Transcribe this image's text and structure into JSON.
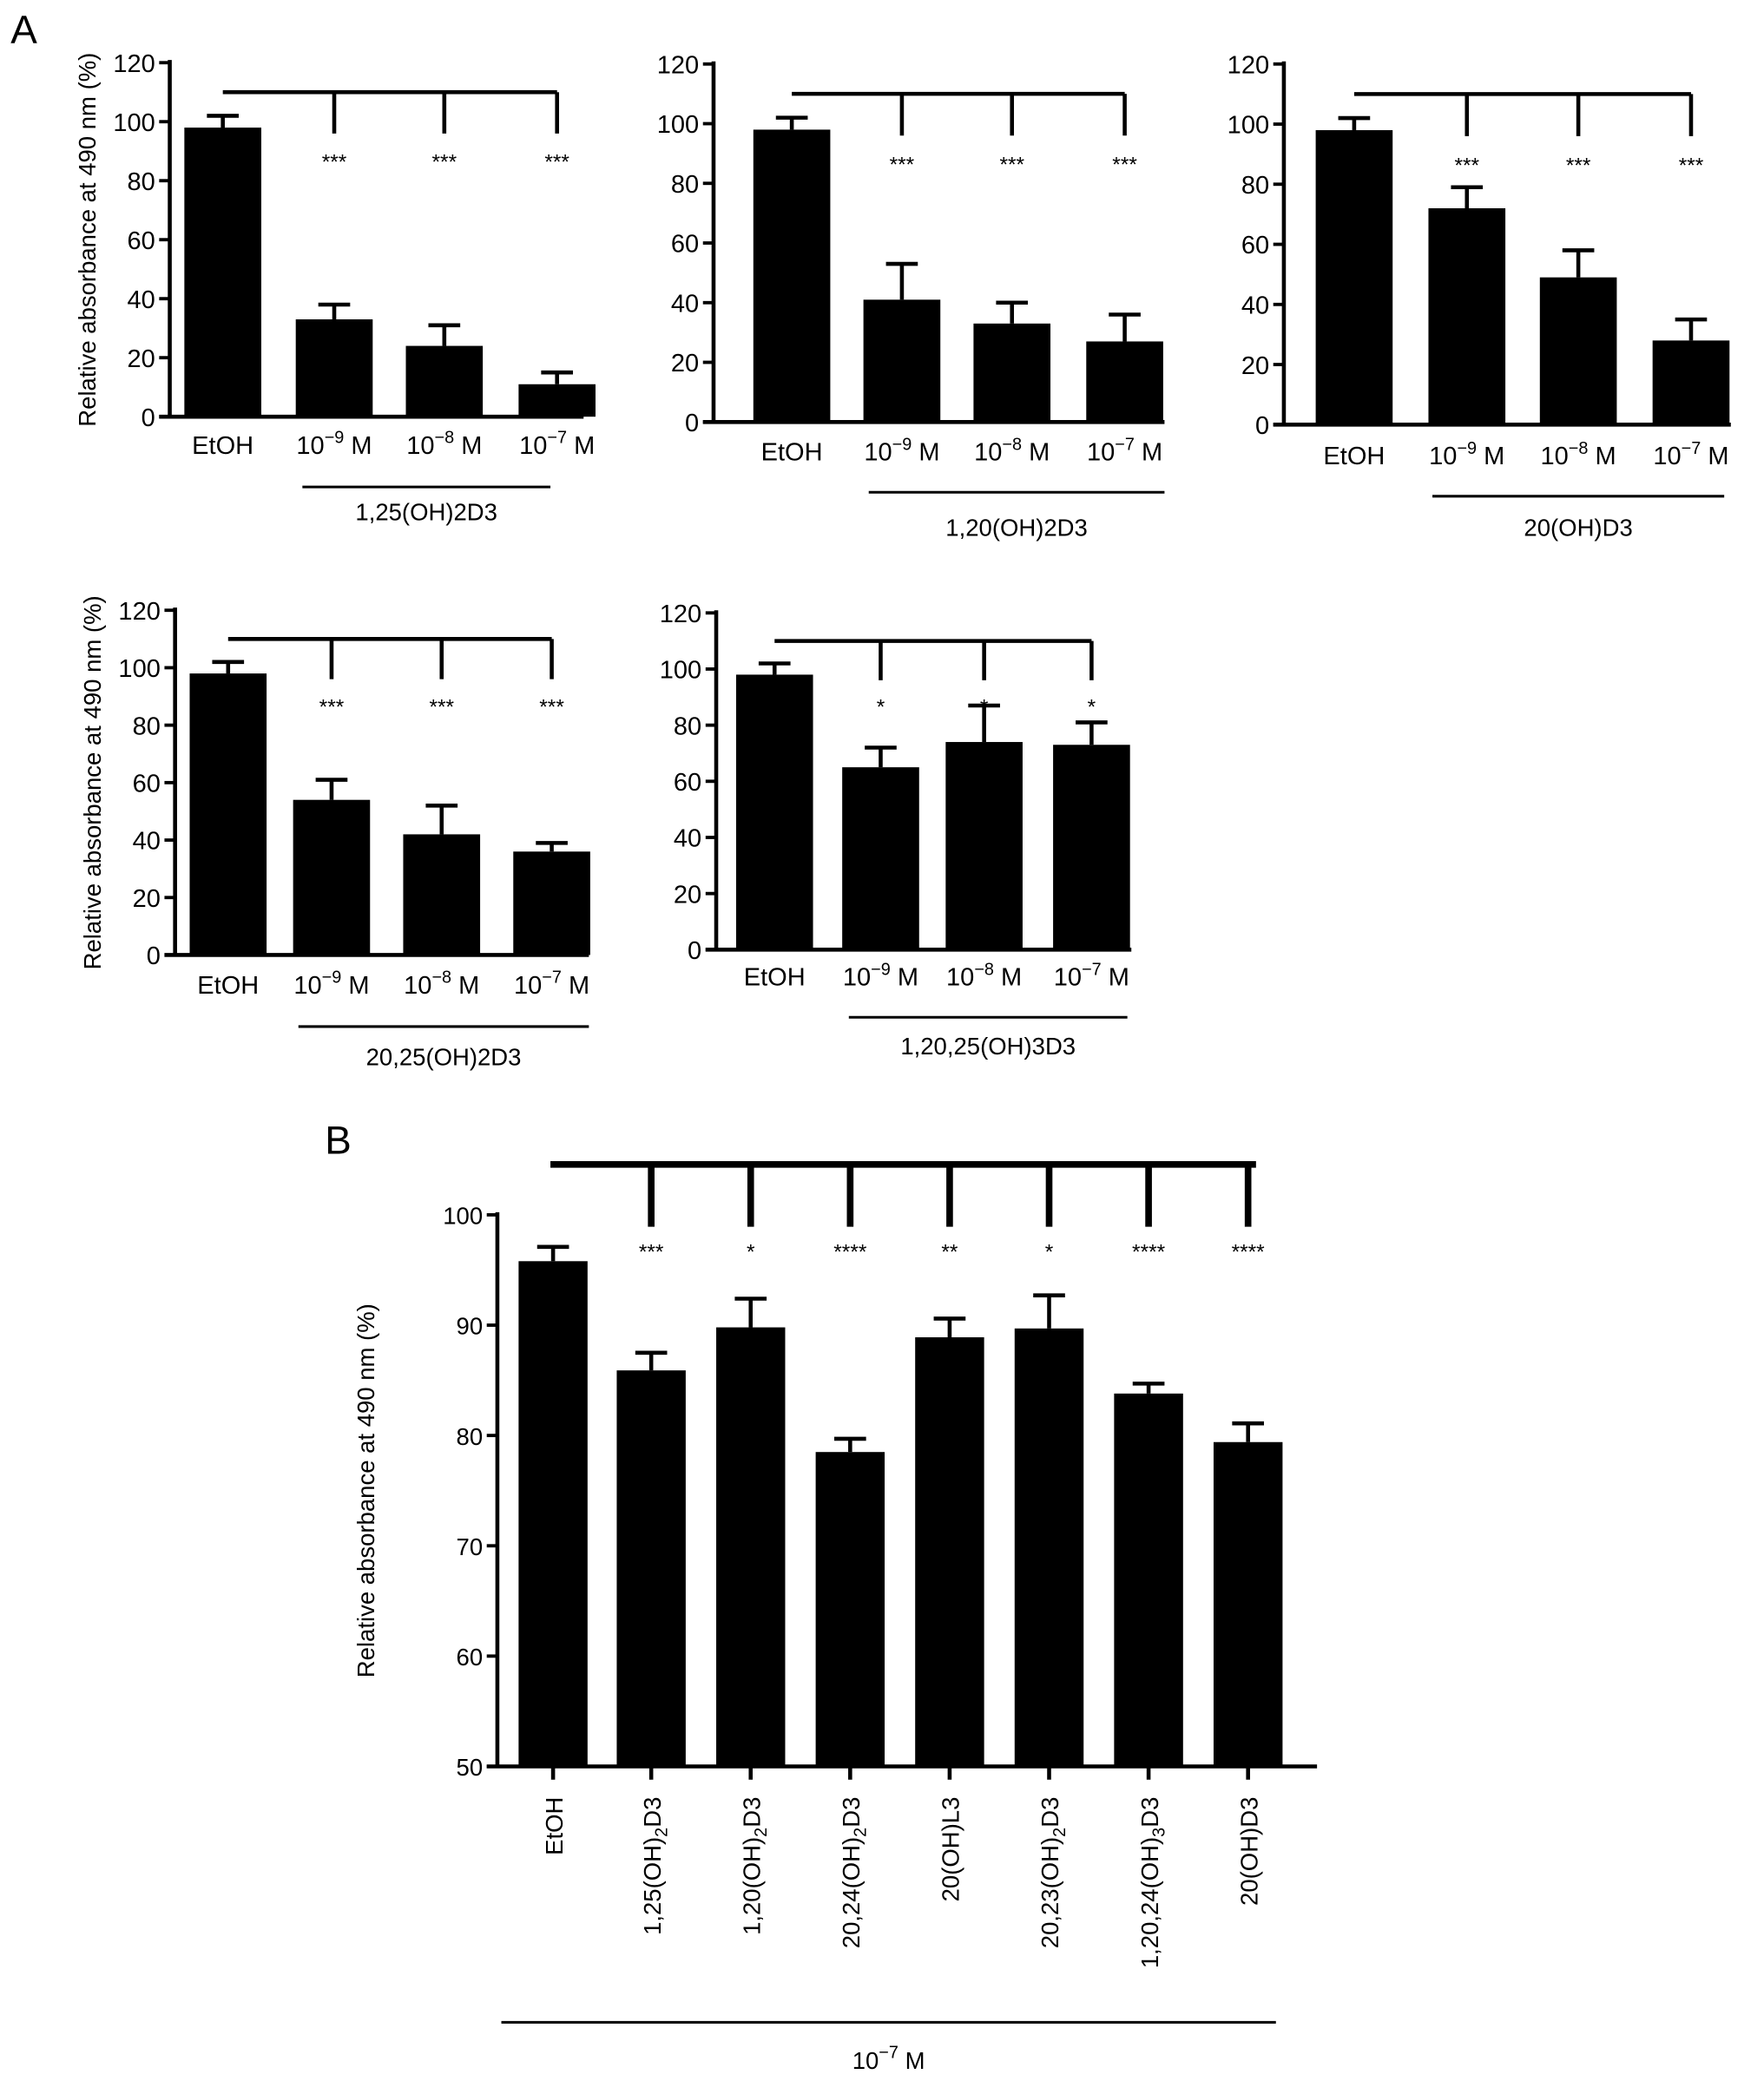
{
  "panel_labels": {
    "a": "A",
    "b": "B"
  },
  "chart_data": [
    {
      "type": "bar",
      "id": "a1",
      "ylabel": "Relative absorbance at 490 nm (%)",
      "ylim": [
        0,
        120
      ],
      "yticks": [
        0,
        20,
        40,
        60,
        80,
        100,
        120
      ],
      "categories": [
        {
          "base": "EtOH"
        },
        {
          "base": "10",
          "exp": "−9",
          "tail": " M"
        },
        {
          "base": "10",
          "exp": "−8",
          "tail": " M"
        },
        {
          "base": "10",
          "exp": "−7",
          "tail": " M"
        }
      ],
      "values": [
        98,
        33,
        24,
        11
      ],
      "errors": [
        4,
        5,
        7,
        4
      ],
      "significance": [
        "",
        "***",
        "***",
        "***"
      ],
      "group_label": "1,25(OH)2D3"
    },
    {
      "type": "bar",
      "id": "a2",
      "ylabel": "",
      "ylim": [
        0,
        120
      ],
      "yticks": [
        0,
        20,
        40,
        60,
        80,
        100,
        120
      ],
      "categories": [
        {
          "base": "EtOH"
        },
        {
          "base": "10",
          "exp": "−9",
          "tail": " M"
        },
        {
          "base": "10",
          "exp": "−8",
          "tail": " M"
        },
        {
          "base": "10",
          "exp": "−7",
          "tail": " M"
        }
      ],
      "values": [
        98,
        41,
        33,
        27
      ],
      "errors": [
        4,
        12,
        7,
        9
      ],
      "significance": [
        "",
        "***",
        "***",
        "***"
      ],
      "group_label": "1,20(OH)2D3"
    },
    {
      "type": "bar",
      "id": "a3",
      "ylabel": "",
      "ylim": [
        0,
        120
      ],
      "yticks": [
        0,
        20,
        40,
        60,
        80,
        100,
        120
      ],
      "categories": [
        {
          "base": "EtOH"
        },
        {
          "base": "10",
          "exp": "−9",
          "tail": " M"
        },
        {
          "base": "10",
          "exp": "−8",
          "tail": " M"
        },
        {
          "base": "10",
          "exp": "−7",
          "tail": " M"
        }
      ],
      "values": [
        98,
        72,
        49,
        28
      ],
      "errors": [
        4,
        7,
        9,
        7
      ],
      "significance": [
        "",
        "***",
        "***",
        "***"
      ],
      "group_label": "20(OH)D3"
    },
    {
      "type": "bar",
      "id": "a4",
      "ylabel": "Relative absorbance at 490 nm (%)",
      "ylim": [
        0,
        120
      ],
      "yticks": [
        0,
        20,
        40,
        60,
        80,
        100,
        120
      ],
      "categories": [
        {
          "base": "EtOH"
        },
        {
          "base": "10",
          "exp": "−9",
          "tail": " M"
        },
        {
          "base": "10",
          "exp": "−8",
          "tail": " M"
        },
        {
          "base": "10",
          "exp": "−7",
          "tail": " M"
        }
      ],
      "values": [
        98,
        54,
        42,
        36
      ],
      "errors": [
        4,
        7,
        10,
        3
      ],
      "significance": [
        "",
        "***",
        "***",
        "***"
      ],
      "group_label": "20,25(OH)2D3"
    },
    {
      "type": "bar",
      "id": "a5",
      "ylabel": "",
      "ylim": [
        0,
        120
      ],
      "yticks": [
        0,
        20,
        40,
        60,
        80,
        100,
        120
      ],
      "categories": [
        {
          "base": "EtOH"
        },
        {
          "base": "10",
          "exp": "−9",
          "tail": " M"
        },
        {
          "base": "10",
          "exp": "−8",
          "tail": " M"
        },
        {
          "base": "10",
          "exp": "−7",
          "tail": " M"
        }
      ],
      "values": [
        98,
        65,
        74,
        73
      ],
      "errors": [
        4,
        7,
        13,
        8
      ],
      "significance": [
        "",
        "*",
        "*",
        "*"
      ],
      "group_label": "1,20,25(OH)3D3"
    },
    {
      "type": "bar",
      "id": "b",
      "ylabel": "Relative absorbance at 490 nm (%)",
      "ylim": [
        50,
        100
      ],
      "yticks": [
        50,
        60,
        70,
        80,
        90,
        100
      ],
      "categories": [
        [
          {
            "t": "EtOH"
          }
        ],
        [
          {
            "t": "1,25(OH)"
          },
          {
            "t": "2",
            "sub": true
          },
          {
            "t": "D3"
          }
        ],
        [
          {
            "t": "1,20(OH)"
          },
          {
            "t": "2",
            "sub": true
          },
          {
            "t": "D3"
          }
        ],
        [
          {
            "t": "20,24(OH)"
          },
          {
            "t": "2",
            "sub": true
          },
          {
            "t": "D3"
          }
        ],
        [
          {
            "t": "20(OH)L3"
          }
        ],
        [
          {
            "t": "20,23(OH)"
          },
          {
            "t": "2",
            "sub": true
          },
          {
            "t": "D3"
          }
        ],
        [
          {
            "t": "1,20,24(OH)"
          },
          {
            "t": "3",
            "sub": true
          },
          {
            "t": "D3"
          }
        ],
        [
          {
            "t": "20(OH)D3"
          }
        ]
      ],
      "values": [
        95.8,
        85.9,
        89.8,
        78.5,
        88.9,
        89.7,
        83.8,
        79.4
      ],
      "errors": [
        1.3,
        1.6,
        2.6,
        1.2,
        1.7,
        3.0,
        0.9,
        1.7
      ],
      "significance": [
        "",
        "***",
        "*",
        "****",
        "**",
        "*",
        "****",
        "****"
      ],
      "group_label": {
        "base": "10",
        "exp": "−7",
        "tail": " M"
      }
    }
  ]
}
